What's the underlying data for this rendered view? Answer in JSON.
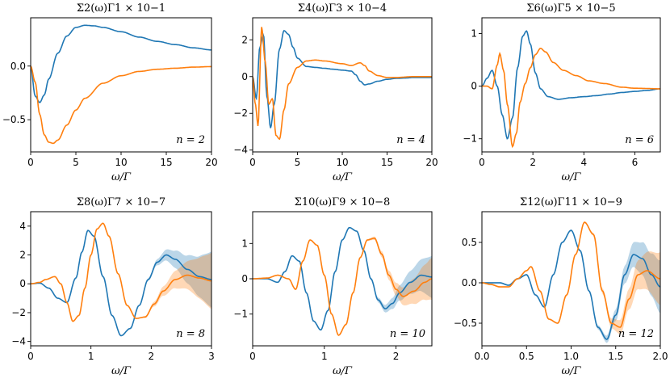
{
  "colors": {
    "series1": "#1f77b4",
    "series2": "#ff7f0e"
  },
  "chart_data": [
    {
      "type": "line",
      "title": "Σ2(ω)Γ1 × 10−1",
      "xlabel": "ω/Γ",
      "xlim": [
        0,
        20
      ],
      "ylim": [
        -0.8,
        0.45
      ],
      "xticks": [
        0,
        5,
        10,
        15,
        20
      ],
      "xtick_labels": [
        "0",
        "5",
        "10",
        "15",
        "20"
      ],
      "yticks": [
        -0.5,
        0.0
      ],
      "ytick_labels": [
        "−0.5",
        "0.0"
      ],
      "annotation": "n = 2",
      "series": [
        {
          "x": [
            0,
            0.5,
            1,
            1.5,
            2,
            3,
            4,
            5,
            6,
            7,
            8,
            10,
            12,
            14,
            16,
            18,
            20
          ],
          "y": [
            0,
            -0.28,
            -0.34,
            -0.27,
            -0.12,
            0.12,
            0.28,
            0.36,
            0.38,
            0.375,
            0.36,
            0.32,
            0.27,
            0.23,
            0.2,
            0.17,
            0.15
          ]
        },
        {
          "x": [
            0,
            0.5,
            1,
            1.5,
            2,
            2.5,
            3,
            4,
            5,
            6,
            8,
            10,
            12,
            14,
            16,
            18,
            20
          ],
          "y": [
            0,
            -0.15,
            -0.45,
            -0.64,
            -0.71,
            -0.72,
            -0.69,
            -0.55,
            -0.41,
            -0.3,
            -0.16,
            -0.09,
            -0.05,
            -0.03,
            -0.02,
            -0.01,
            -0.005
          ]
        }
      ]
    },
    {
      "type": "line",
      "title": "Σ4(ω)Γ3 × 10−4",
      "xlabel": "ω/Γ",
      "xlim": [
        0,
        20
      ],
      "ylim": [
        -4.1,
        3.2
      ],
      "xticks": [
        0,
        5,
        10,
        15,
        20
      ],
      "xtick_labels": [
        "0",
        "5",
        "10",
        "15",
        "20"
      ],
      "yticks": [
        -4,
        -2,
        0,
        2
      ],
      "ytick_labels": [
        "−4",
        "−2",
        "0",
        "2"
      ],
      "annotation": "n = 4",
      "series": [
        {
          "x": [
            0,
            0.4,
            0.8,
            1.2,
            1.6,
            2,
            2.4,
            3,
            3.5,
            4,
            4.5,
            5,
            6,
            7,
            8,
            9,
            10,
            11,
            11.5,
            12,
            12.5,
            13,
            14,
            15,
            16,
            17,
            18,
            19,
            20
          ],
          "y": [
            0,
            -1.2,
            1.6,
            2.3,
            -1.1,
            -2.8,
            -1.5,
            1.5,
            2.5,
            2.3,
            1.6,
            1.0,
            0.55,
            0.5,
            0.45,
            0.4,
            0.35,
            0.3,
            0.1,
            -0.25,
            -0.45,
            -0.4,
            -0.25,
            -0.15,
            -0.1,
            -0.08,
            -0.05,
            -0.05,
            -0.05
          ]
        },
        {
          "x": [
            0,
            0.3,
            0.6,
            1,
            1.4,
            1.8,
            2.2,
            2.6,
            3,
            3.5,
            4,
            5,
            6,
            7,
            8,
            10,
            11,
            12,
            12.5,
            13,
            14,
            15,
            16,
            18,
            20
          ],
          "y": [
            0,
            -1.5,
            -2.7,
            2.7,
            0.8,
            -1.5,
            -1.2,
            -3.2,
            -3.4,
            -1.8,
            -0.4,
            0.5,
            0.85,
            0.9,
            0.85,
            0.7,
            0.6,
            0.75,
            0.6,
            0.3,
            0.05,
            -0.05,
            -0.05,
            0,
            0
          ]
        }
      ]
    },
    {
      "type": "line",
      "title": "Σ6(ω)Γ5 × 10−5",
      "xlabel": "ω/Γ",
      "xlim": [
        0,
        7
      ],
      "ylim": [
        -1.25,
        1.3
      ],
      "xticks": [
        0,
        2,
        4,
        6
      ],
      "xtick_labels": [
        "0",
        "2",
        "4",
        "6"
      ],
      "yticks": [
        -1,
        0,
        1
      ],
      "ytick_labels": [
        "−1",
        "0",
        "1"
      ],
      "annotation": "n = 6",
      "series": [
        {
          "x": [
            0,
            0.2,
            0.4,
            0.6,
            0.8,
            1,
            1.2,
            1.4,
            1.6,
            1.75,
            1.9,
            2.1,
            2.3,
            2.6,
            3,
            3.5,
            4,
            4.5,
            5,
            5.5,
            6,
            6.5,
            7
          ],
          "y": [
            0,
            0.15,
            0.3,
            0.0,
            -0.55,
            -1.0,
            -0.6,
            0.35,
            0.95,
            1.05,
            0.8,
            0.25,
            -0.05,
            -0.2,
            -0.25,
            -0.22,
            -0.2,
            -0.18,
            -0.15,
            -0.12,
            -0.1,
            -0.08,
            -0.05
          ]
        },
        {
          "x": [
            0,
            0.2,
            0.4,
            0.6,
            0.7,
            0.85,
            1,
            1.2,
            1.35,
            1.5,
            1.7,
            1.9,
            2.1,
            2.3,
            2.5,
            2.8,
            3.2,
            3.7,
            4.2,
            4.8,
            5.5,
            6,
            7
          ],
          "y": [
            0,
            0.0,
            -0.05,
            0.4,
            0.62,
            0.3,
            -0.35,
            -1.15,
            -0.9,
            -0.3,
            0.05,
            0.35,
            0.6,
            0.72,
            0.65,
            0.45,
            0.3,
            0.2,
            0.1,
            0.05,
            -0.02,
            -0.04,
            -0.05
          ]
        }
      ]
    },
    {
      "type": "line",
      "title": "Σ8(ω)Γ7 × 10−7",
      "xlabel": "ω/Γ",
      "xlim": [
        0,
        3
      ],
      "ylim": [
        -4.3,
        5.0
      ],
      "xticks": [
        0,
        1,
        2,
        3
      ],
      "xtick_labels": [
        "0",
        "1",
        "2",
        "3"
      ],
      "yticks": [
        -4,
        -2,
        0,
        2,
        4
      ],
      "ytick_labels": [
        "−4",
        "−2",
        "0",
        "2",
        "4"
      ],
      "annotation": "n = 8",
      "series": [
        {
          "x": [
            0,
            0.15,
            0.3,
            0.45,
            0.6,
            0.75,
            0.85,
            0.95,
            1.05,
            1.2,
            1.35,
            1.5,
            1.65,
            1.8,
            1.95,
            2.1,
            2.25,
            2.4,
            2.6,
            2.8,
            3
          ],
          "y": [
            0,
            0.05,
            -0.3,
            -1.0,
            -1.3,
            0.4,
            2.2,
            3.7,
            3.3,
            0.5,
            -2.2,
            -3.6,
            -3.1,
            -1.5,
            0.3,
            1.5,
            2.0,
            1.7,
            1.0,
            0.5,
            0.3
          ]
        },
        {
          "x": [
            0,
            0.15,
            0.25,
            0.4,
            0.5,
            0.6,
            0.7,
            0.8,
            0.9,
            1,
            1.1,
            1.2,
            1.3,
            1.45,
            1.6,
            1.75,
            1.9,
            2.05,
            2.2,
            2.4,
            2.6,
            2.8,
            3
          ],
          "y": [
            0,
            0.1,
            0.3,
            0.5,
            0.0,
            -1.3,
            -2.6,
            -2.2,
            -0.3,
            2.0,
            3.8,
            4.2,
            3.3,
            0.7,
            -1.5,
            -2.4,
            -2.3,
            -1.4,
            -0.5,
            0.3,
            0.6,
            0.4,
            0.2
          ]
        }
      ],
      "band_spread": [
        0,
        0.6
      ]
    },
    {
      "type": "line",
      "title": "Σ10(ω)Γ9 × 10−8",
      "xlabel": "ω/Γ",
      "xlim": [
        0,
        2.5
      ],
      "ylim": [
        -1.9,
        1.9
      ],
      "xticks": [
        0,
        1,
        2
      ],
      "xtick_labels": [
        "0",
        "1",
        "2"
      ],
      "yticks": [
        -1,
        0,
        1
      ],
      "ytick_labels": [
        "−1",
        "0",
        "1"
      ],
      "annotation": "n = 10",
      "series": [
        {
          "x": [
            0,
            0.2,
            0.35,
            0.45,
            0.55,
            0.65,
            0.75,
            0.85,
            0.95,
            1.05,
            1.15,
            1.25,
            1.35,
            1.45,
            1.55,
            1.65,
            1.75,
            1.85,
            1.95,
            2.05,
            2.2,
            2.35,
            2.5
          ],
          "y": [
            0,
            0.0,
            -0.1,
            0.2,
            0.65,
            0.5,
            -0.4,
            -1.2,
            -1.45,
            -0.9,
            0.2,
            1.1,
            1.45,
            1.35,
            0.8,
            0.0,
            -0.6,
            -0.85,
            -0.7,
            -0.4,
            -0.1,
            0.1,
            0.05
          ]
        },
        {
          "x": [
            0,
            0.2,
            0.35,
            0.5,
            0.6,
            0.7,
            0.8,
            0.9,
            1,
            1.1,
            1.2,
            1.3,
            1.4,
            1.5,
            1.6,
            1.7,
            1.8,
            1.9,
            2,
            2.1,
            2.25,
            2.4,
            2.5
          ],
          "y": [
            0,
            0.02,
            0.1,
            0.0,
            -0.3,
            0.5,
            1.1,
            0.95,
            0.1,
            -1.0,
            -1.6,
            -1.3,
            -0.4,
            0.6,
            1.1,
            1.15,
            0.7,
            0.1,
            -0.3,
            -0.5,
            -0.35,
            -0.1,
            0.0
          ]
        }
      ],
      "band_spread": [
        0,
        0.45
      ]
    },
    {
      "type": "line",
      "title": "Σ12(ω)Γ11 × 10−9",
      "xlabel": "ω/Γ",
      "xlim": [
        0,
        2.0
      ],
      "ylim": [
        -0.78,
        0.88
      ],
      "xticks": [
        0,
        0.5,
        1,
        1.5,
        2
      ],
      "xtick_labels": [
        "0.0",
        "0.5",
        "1.0",
        "1.5",
        "2.0"
      ],
      "yticks": [
        -0.5,
        0.0,
        0.5
      ],
      "ytick_labels": [
        "−0.5",
        "0.0",
        "0.5"
      ],
      "annotation": "n = 12",
      "series": [
        {
          "x": [
            0,
            0.1,
            0.2,
            0.3,
            0.4,
            0.5,
            0.6,
            0.7,
            0.8,
            0.9,
            1,
            1.1,
            1.2,
            1.3,
            1.4,
            1.5,
            1.6,
            1.7,
            1.8,
            1.9,
            2
          ],
          "y": [
            0,
            0.0,
            0.0,
            -0.03,
            0.05,
            0.1,
            -0.15,
            -0.3,
            0.1,
            0.5,
            0.65,
            0.4,
            -0.1,
            -0.55,
            -0.7,
            -0.4,
            0.1,
            0.35,
            0.3,
            0.1,
            -0.05
          ]
        },
        {
          "x": [
            0,
            0.1,
            0.2,
            0.3,
            0.4,
            0.5,
            0.55,
            0.65,
            0.75,
            0.85,
            0.95,
            1.05,
            1.15,
            1.25,
            1.35,
            1.45,
            1.55,
            1.65,
            1.75,
            1.85,
            2
          ],
          "y": [
            0,
            -0.02,
            -0.05,
            -0.05,
            0.05,
            0.15,
            0.2,
            -0.1,
            -0.45,
            -0.5,
            -0.15,
            0.35,
            0.75,
            0.6,
            -0.1,
            -0.5,
            -0.55,
            -0.2,
            0.1,
            0.15,
            0.05
          ]
        }
      ],
      "band_spread": [
        0.1,
        0.55
      ]
    }
  ]
}
